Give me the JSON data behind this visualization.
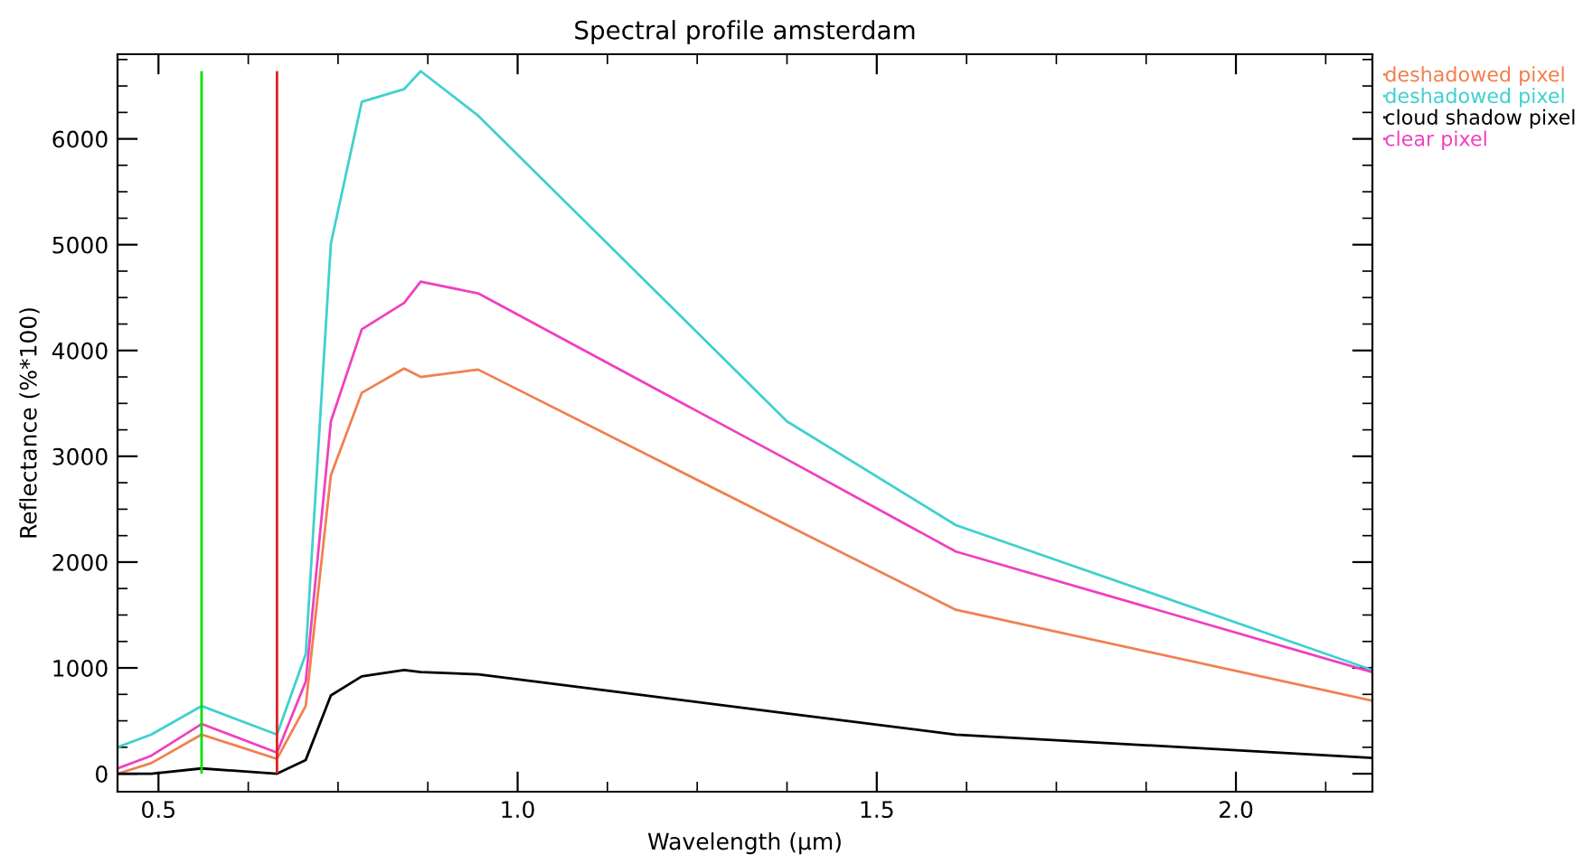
{
  "chart_data": {
    "type": "line",
    "title": "Spectral profile amsterdam",
    "xlabel": "Wavelength (µm)",
    "ylabel": "Reflectance (%*100)",
    "x": [
      0.443,
      0.49,
      0.56,
      0.665,
      0.705,
      0.74,
      0.783,
      0.842,
      0.865,
      0.945,
      1.375,
      1.61,
      2.19
    ],
    "series": [
      {
        "name": "deshadowed pixel",
        "color": "#f08050",
        "values": [
          0,
          100,
          370,
          140,
          640,
          2820,
          3600,
          3830,
          3750,
          3820,
          2350,
          1550,
          690
        ]
      },
      {
        "name": "deshadowed pixel",
        "color": "#40d0d0",
        "values": [
          250,
          370,
          640,
          370,
          1130,
          5010,
          6350,
          6470,
          6640,
          6220,
          3330,
          2350,
          980
        ]
      },
      {
        "name": "cloud shadow pixel",
        "color": "#000000",
        "values": [
          0,
          0,
          50,
          0,
          130,
          740,
          920,
          980,
          960,
          940,
          570,
          370,
          150
        ]
      },
      {
        "name": "clear pixel",
        "color": "#f040c0",
        "values": [
          50,
          170,
          470,
          200,
          870,
          3330,
          4200,
          4450,
          4650,
          4540,
          2970,
          2100,
          960
        ]
      }
    ],
    "ref_lines": [
      {
        "axis": "x",
        "value": 0.56,
        "color": "#00e000"
      },
      {
        "axis": "x",
        "value": 0.665,
        "color": "#e02020"
      }
    ],
    "xlim": [
      0.443,
      2.19
    ],
    "ylim": [
      -170,
      6800
    ],
    "xticks": [
      {
        "value": 0.5,
        "label": "0.5"
      },
      {
        "value": 0.625,
        "label": null
      },
      {
        "value": 0.75,
        "label": null
      },
      {
        "value": 0.875,
        "label": null
      },
      {
        "value": 1,
        "label": "1.0"
      },
      {
        "value": 1.125,
        "label": null
      },
      {
        "value": 1.25,
        "label": null
      },
      {
        "value": 1.375,
        "label": null
      },
      {
        "value": 1.5,
        "label": "1.5"
      },
      {
        "value": 1.625,
        "label": null
      },
      {
        "value": 1.75,
        "label": null
      },
      {
        "value": 1.875,
        "label": null
      },
      {
        "value": 2,
        "label": "2.0"
      },
      {
        "value": 2.125,
        "label": null
      }
    ],
    "yticks": [
      0,
      {
        "value": 250,
        "label": null
      },
      {
        "value": 500,
        "label": null
      },
      {
        "value": 750,
        "label": null
      },
      1000,
      {
        "value": 1250,
        "label": null
      },
      {
        "value": 1500,
        "label": null
      },
      {
        "value": 1750,
        "label": null
      },
      2000,
      {
        "value": 2250,
        "label": null
      },
      {
        "value": 2500,
        "label": null
      },
      {
        "value": 2750,
        "label": null
      },
      3000,
      {
        "value": 3250,
        "label": null
      },
      {
        "value": 3500,
        "label": null
      },
      {
        "value": 3750,
        "label": null
      },
      4000,
      {
        "value": 4250,
        "label": null
      },
      {
        "value": 4500,
        "label": null
      },
      {
        "value": 4750,
        "label": null
      },
      5000,
      {
        "value": 5250,
        "label": null
      },
      {
        "value": 5500,
        "label": null
      },
      {
        "value": 5750,
        "label": null
      },
      6000,
      {
        "value": 6250,
        "label": null
      },
      {
        "value": 6500,
        "label": null
      },
      {
        "value": 6750,
        "label": null
      }
    ],
    "grid": false,
    "legend": "top right",
    "marker": "none",
    "line_style": "solid"
  }
}
